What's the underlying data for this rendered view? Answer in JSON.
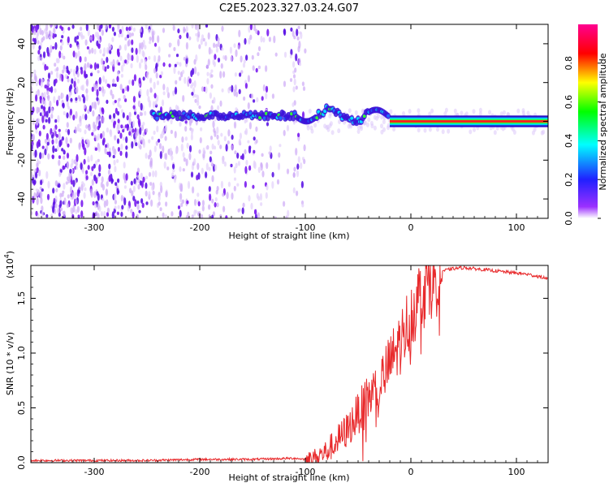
{
  "title": "C2E5.2023.327.03.24.G07",
  "chart_data": [
    {
      "type": "heatmap",
      "xlabel": "Height of straight line (km)",
      "ylabel": "Frequency (Hz)",
      "xlim": [
        -360,
        130
      ],
      "ylim": [
        -50,
        50
      ],
      "xticks": [
        -300,
        -200,
        -100,
        0,
        100
      ],
      "yticks": [
        -40,
        -20,
        0,
        20,
        40
      ],
      "colorbar": {
        "label": "Normalized spectral amplitude",
        "range": [
          0.0,
          1.0
        ],
        "ticks": [
          "0.0",
          "0.2",
          "0.4",
          "0.6",
          "0.8"
        ],
        "colormap": "rainbow (white, purple, blue, cyan, green, yellow, red, magenta)"
      },
      "ridge": {
        "description": "narrow signal ridge near 0 Hz",
        "start_x": -245,
        "end_x": 130,
        "frequency_hz": 0,
        "peak_amplitude_region_x": [
          -20,
          130
        ]
      },
      "noise_region_x": [
        -360,
        -100
      ]
    },
    {
      "type": "line",
      "xlabel": "Height of straight line (km)",
      "ylabel": "SNR (10 * v/v)",
      "y_multiplier": "(x10",
      "y_multiplier_exp": "4",
      "y_multiplier_close": ")",
      "xlim": [
        -360,
        130
      ],
      "ylim": [
        0,
        1.8
      ],
      "xticks": [
        -300,
        -200,
        -100,
        0,
        100
      ],
      "yticks": [
        "0.0",
        "0.5",
        "1.0",
        "1.5"
      ],
      "series": [
        {
          "color": "#e8292b",
          "x": [
            -360,
            -300,
            -250,
            -200,
            -150,
            -110,
            -100,
            -90,
            -80,
            -70,
            -60,
            -50,
            -40,
            -30,
            -20,
            -10,
            0,
            10,
            20,
            30,
            40,
            50,
            60,
            70,
            80,
            90,
            100,
            110,
            120,
            130
          ],
          "y": [
            0.02,
            0.02,
            0.02,
            0.03,
            0.03,
            0.04,
            0.03,
            0.05,
            0.1,
            0.2,
            0.3,
            0.45,
            0.6,
            0.7,
            0.9,
            1.1,
            1.35,
            1.55,
            1.7,
            1.75,
            1.77,
            1.78,
            1.77,
            1.76,
            1.75,
            1.74,
            1.73,
            1.72,
            1.7,
            1.68
          ]
        }
      ]
    }
  ]
}
